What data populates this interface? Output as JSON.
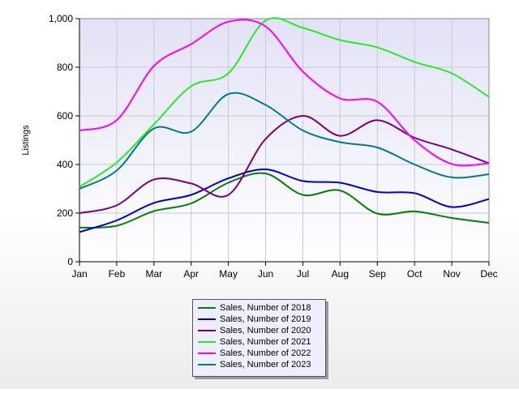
{
  "chart_data": {
    "type": "line",
    "title": "",
    "xlabel": "",
    "ylabel": "Listings",
    "ylim": [
      0,
      1000
    ],
    "yticks": [
      0,
      200,
      400,
      600,
      800,
      1000
    ],
    "ytick_labels": [
      "0",
      "200",
      "400",
      "600",
      "800",
      "1,000"
    ],
    "categories": [
      "Jan",
      "Feb",
      "Mar",
      "Apr",
      "May",
      "Jun",
      "Jul",
      "Aug",
      "Sep",
      "Oct",
      "Nov",
      "Dec"
    ],
    "grid": true,
    "legend_position": "bottom",
    "series": [
      {
        "name": "Sales, Number of 2018",
        "color": "#008000",
        "values": [
          140,
          148,
          208,
          240,
          325,
          363,
          275,
          293,
          198,
          207,
          180,
          160
        ]
      },
      {
        "name": "Sales, Number of 2019",
        "color": "#0000cc",
        "values": [
          122,
          170,
          242,
          275,
          343,
          380,
          332,
          325,
          287,
          282,
          225,
          258
        ]
      },
      {
        "name": "Sales, Number of 2020",
        "color": "#7a007a",
        "values": [
          200,
          232,
          338,
          322,
          275,
          505,
          600,
          518,
          582,
          510,
          462,
          405
        ]
      },
      {
        "name": "Sales, Number of 2021",
        "color": "#22ee22",
        "values": [
          308,
          408,
          565,
          722,
          775,
          992,
          962,
          912,
          882,
          822,
          775,
          678
        ]
      },
      {
        "name": "Sales, Number of 2022",
        "color": "#ff00ff",
        "values": [
          540,
          582,
          805,
          895,
          987,
          968,
          782,
          672,
          658,
          500,
          402,
          405
        ]
      },
      {
        "name": "Sales, Number of 2023",
        "color": "#007b8a",
        "values": [
          300,
          375,
          548,
          535,
          690,
          645,
          540,
          492,
          470,
          400,
          347,
          360
        ]
      }
    ]
  }
}
